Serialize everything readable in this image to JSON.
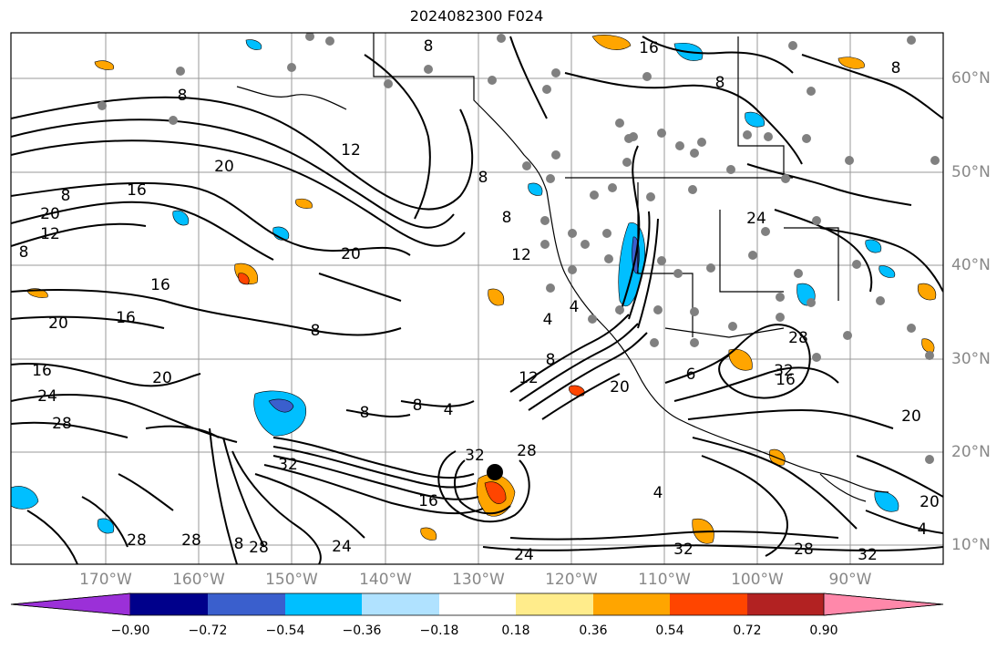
{
  "title": "2024082300 F024",
  "longitude_labels": [
    "170°W",
    "160°W",
    "150°W",
    "140°W",
    "130°W",
    "120°W",
    "110°W",
    "100°W",
    "90°W"
  ],
  "latitude_labels": [
    "60°N",
    "50°N",
    "40°N",
    "30°N",
    "20°N",
    "10°N"
  ],
  "contour_labels": [
    "16",
    "8",
    "8",
    "12",
    "20",
    "8",
    "16",
    "20",
    "12",
    "8",
    "20",
    "16",
    "12",
    "8",
    "20",
    "16",
    "8",
    "16",
    "20",
    "24",
    "28",
    "8",
    "4",
    "8",
    "12",
    "4",
    "8",
    "20",
    "32",
    "16",
    "28",
    "32",
    "24",
    "8",
    "28",
    "32",
    "28",
    "32",
    "24",
    "28",
    "20",
    "28",
    "16",
    "8",
    "6",
    "4",
    "20",
    "24",
    "28",
    "4",
    "8",
    "4",
    "32",
    "8"
  ],
  "colorbar": {
    "ticks": [
      "−0.90",
      "−0.72",
      "−0.54",
      "−0.36",
      "−0.18",
      "0.18",
      "0.36",
      "0.54",
      "0.72",
      "0.90"
    ],
    "colors": [
      "#9b30d8",
      "#00008b",
      "#3a5fcd",
      "#00bfff",
      "#b0e2ff",
      "#ffffff",
      "#ffec8b",
      "#ffa500",
      "#ff4500",
      "#b22222",
      "#ff88aa"
    ]
  }
}
